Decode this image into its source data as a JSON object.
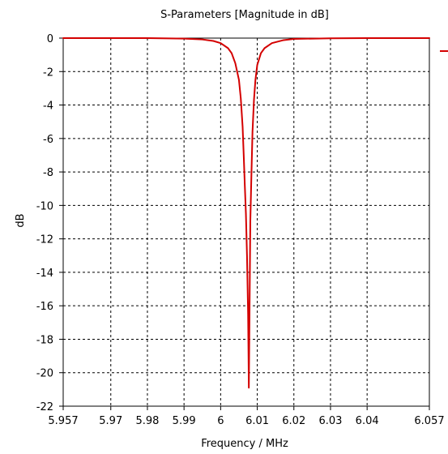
{
  "chart_data": {
    "type": "line",
    "title": "S-Parameters [Magnitude in dB]",
    "xlabel": "Frequency / MHz",
    "ylabel": "dB",
    "xlim": [
      5.957,
      6.057
    ],
    "ylim": [
      -22,
      0
    ],
    "grid": true,
    "x_ticks": [
      "5.957",
      "5.97",
      "5.98",
      "5.99",
      "6",
      "6.01",
      "6.02",
      "6.03",
      "6.04",
      "6.057"
    ],
    "y_ticks": [
      "0",
      "-2",
      "-4",
      "-6",
      "-8",
      "-10",
      "-12",
      "-14",
      "-16",
      "-18",
      "-20",
      "-22"
    ],
    "legend_position": "right",
    "series": [
      {
        "color": "#d40000",
        "x": [
          5.957,
          5.97,
          5.98,
          5.99,
          5.995,
          5.998,
          6.0,
          6.002,
          6.003,
          6.004,
          6.005,
          6.0055,
          6.006,
          6.0063,
          6.0066,
          6.0069,
          6.0072,
          6.0075,
          6.0077,
          6.0079,
          6.0081,
          6.0084,
          6.0087,
          6.0091,
          6.0095,
          6.01,
          6.011,
          6.012,
          6.014,
          6.017,
          6.02,
          6.03,
          6.04,
          6.057
        ],
        "values": [
          0.0,
          0.0,
          0.0,
          -0.03,
          -0.08,
          -0.17,
          -0.3,
          -0.6,
          -0.9,
          -1.5,
          -2.5,
          -3.6,
          -5.3,
          -7.0,
          -8.8,
          -10.5,
          -13.0,
          -16.5,
          -20.9,
          -16.0,
          -11.0,
          -8.2,
          -5.6,
          -3.7,
          -2.5,
          -1.6,
          -0.9,
          -0.6,
          -0.3,
          -0.13,
          -0.05,
          -0.01,
          0.0,
          0.0
        ]
      }
    ]
  }
}
